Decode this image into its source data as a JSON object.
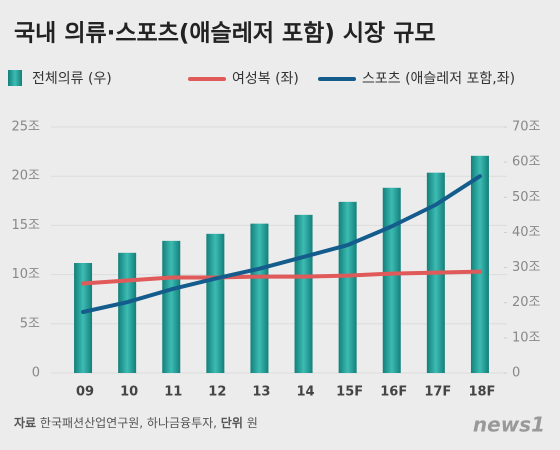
{
  "chart_data": {
    "type": "bar_line",
    "title": "국내 의류·스포츠(애슬레저 포함) 시장 규모",
    "categories": [
      "09",
      "10",
      "11",
      "12",
      "13",
      "14",
      "15F",
      "16F",
      "17F",
      "18F"
    ],
    "series": [
      {
        "name": "전체의류 (우)",
        "type": "bar",
        "axis": "y2",
        "color": "#1f9a93",
        "values": [
          31.3,
          34.2,
          37.6,
          39.6,
          42.5,
          45.0,
          48.7,
          52.7,
          57.0,
          61.8
        ]
      },
      {
        "name": "여성복 (좌)",
        "type": "line",
        "color": "#e05a5a",
        "values": [
          9.1,
          9.4,
          9.7,
          9.7,
          9.8,
          9.8,
          9.9,
          10.1,
          10.2,
          10.3
        ]
      },
      {
        "name": "스포츠 (애슬레저 포함,좌)",
        "type": "line",
        "color": "#135c8c",
        "values": [
          6.2,
          7.2,
          8.5,
          9.6,
          10.6,
          11.8,
          13.0,
          14.9,
          17.1,
          20.0
        ]
      }
    ],
    "ylim": [
      0,
      25
    ],
    "yticks": [
      0,
      {
        "value": 5,
        "label": "5조"
      },
      {
        "value": 10,
        "label": "10조"
      },
      {
        "value": 15,
        "label": "15조"
      },
      {
        "value": 20,
        "label": "20조"
      },
      {
        "value": 25,
        "label": "25조"
      }
    ],
    "y2lim": [
      0,
      70
    ],
    "y2ticks": [
      0,
      {
        "value": 10,
        "label": "10조"
      },
      {
        "value": 20,
        "label": "20조"
      },
      {
        "value": 30,
        "label": "30조"
      },
      {
        "value": 40,
        "label": "40조"
      },
      {
        "value": 50,
        "label": "50조"
      },
      {
        "value": 60,
        "label": "60조"
      },
      {
        "value": 70,
        "label": "70조"
      }
    ],
    "grid": true
  },
  "footer": {
    "source_label": "자료",
    "source": "한국패션산업연구원, 하나금융투자,",
    "unit_label": "단위",
    "unit": "원",
    "logo": "news1"
  }
}
